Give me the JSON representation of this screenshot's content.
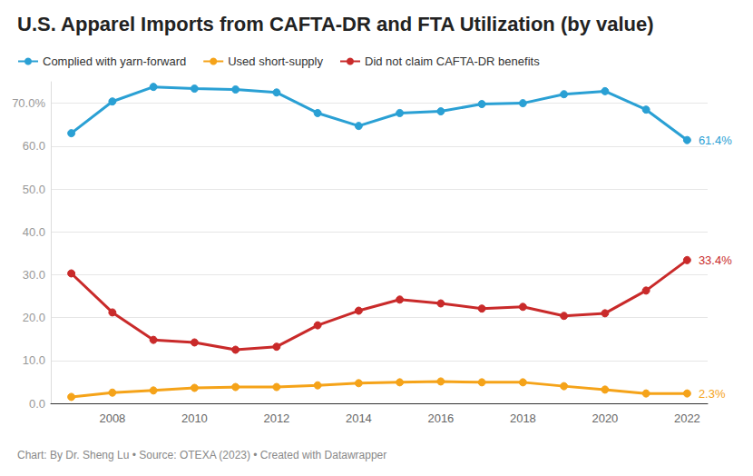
{
  "chart_data": {
    "type": "line",
    "title": "U.S. Apparel Imports from CAFTA-DR and FTA Utilization (by value)",
    "caption": "Chart: By Dr. Sheng Lu • Source: OTEXA (2023) • Created with Datawrapper",
    "categories": [
      null,
      "2008",
      null,
      "2010",
      null,
      "2012",
      null,
      "2014",
      null,
      "2016",
      null,
      "2018",
      null,
      "2020",
      null,
      "2022"
    ],
    "series": [
      {
        "name": "Complied with yarn-forward",
        "color": "#2aa0d4",
        "values": [
          63.0,
          70.4,
          73.8,
          73.4,
          73.2,
          72.5,
          67.7,
          64.7,
          67.7,
          68.1,
          69.8,
          70.0,
          72.1,
          72.8,
          68.5,
          61.4
        ],
        "value_labels": [
          null,
          null,
          null,
          null,
          null,
          null,
          null,
          null,
          null,
          null,
          null,
          null,
          null,
          null,
          null,
          "61.4%"
        ]
      },
      {
        "name": "Used short-supply",
        "color": "#f5a319",
        "values": [
          1.5,
          2.5,
          3.0,
          3.6,
          3.8,
          3.8,
          4.2,
          4.7,
          4.9,
          5.1,
          4.9,
          4.9,
          4.0,
          3.2,
          2.3,
          2.3
        ],
        "value_labels": [
          null,
          null,
          null,
          null,
          null,
          null,
          null,
          null,
          null,
          null,
          null,
          null,
          null,
          null,
          null,
          "2.3%"
        ]
      },
      {
        "name": "Did not claim CAFTA-DR benefits",
        "color": "#c92a2a",
        "values": [
          30.3,
          21.2,
          14.8,
          14.2,
          12.5,
          13.2,
          18.2,
          21.6,
          24.2,
          23.3,
          22.1,
          22.5,
          20.4,
          21.0,
          26.3,
          33.4
        ],
        "value_labels": [
          null,
          null,
          null,
          null,
          null,
          null,
          null,
          null,
          null,
          null,
          null,
          null,
          null,
          null,
          null,
          "33.4%"
        ]
      }
    ],
    "ylim": [
      0,
      75
    ],
    "yticks": [
      {
        "value": 0,
        "label": "0.0"
      },
      {
        "value": 10,
        "label": "10.0"
      },
      {
        "value": 20,
        "label": "20.0"
      },
      {
        "value": 30,
        "label": "30.0"
      },
      {
        "value": 40,
        "label": "40.0"
      },
      {
        "value": 50,
        "label": "50.0"
      },
      {
        "value": 60,
        "label": "60.0"
      },
      {
        "value": 70,
        "label": "70.0%"
      }
    ],
    "grid": true,
    "legend": "top-left",
    "marker": "circle"
  }
}
